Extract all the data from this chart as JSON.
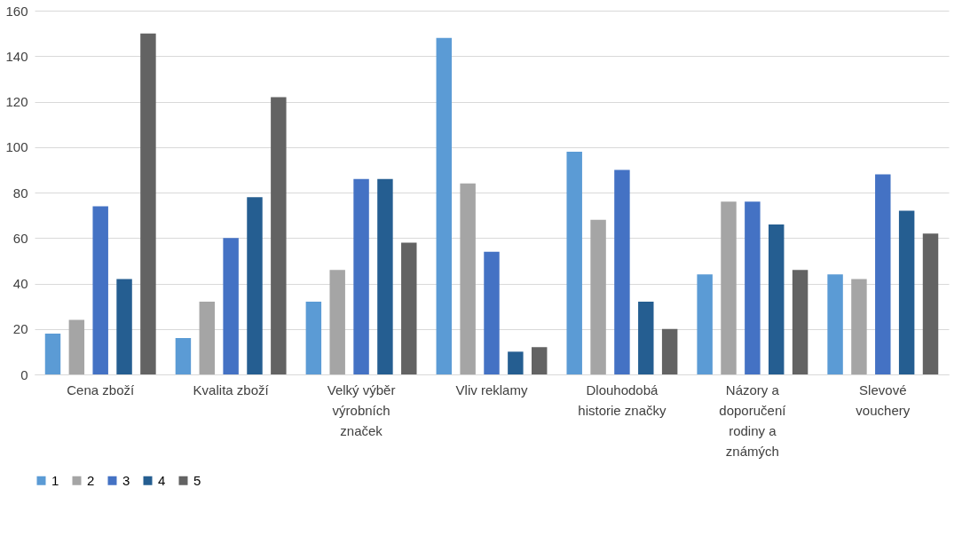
{
  "chart_data": {
    "type": "bar",
    "categories": [
      "Cena zboží",
      "Kvalita zboží",
      "Velký výběr výrobních značek",
      "Vliv reklamy",
      "Dlouhodobá historie značky",
      "Názory a doporučení rodiny a známých",
      "Slevové vouchery"
    ],
    "series": [
      {
        "name": "1",
        "color": "#5b9bd5",
        "values": [
          18,
          16,
          32,
          148,
          98,
          44,
          44
        ]
      },
      {
        "name": "2",
        "color": "#a5a5a5",
        "values": [
          24,
          32,
          46,
          84,
          68,
          76,
          42
        ]
      },
      {
        "name": "3",
        "color": "#4472c4",
        "values": [
          74,
          60,
          86,
          54,
          90,
          76,
          88
        ]
      },
      {
        "name": "4",
        "color": "#255e91",
        "values": [
          42,
          78,
          86,
          10,
          32,
          66,
          72
        ]
      },
      {
        "name": "5",
        "color": "#636363",
        "values": [
          150,
          122,
          58,
          12,
          20,
          46,
          62
        ]
      }
    ],
    "ylim": [
      0,
      160
    ],
    "yticks": [
      0,
      20,
      40,
      60,
      80,
      100,
      120,
      140,
      160
    ],
    "grid": "y",
    "legend": "bottom"
  }
}
